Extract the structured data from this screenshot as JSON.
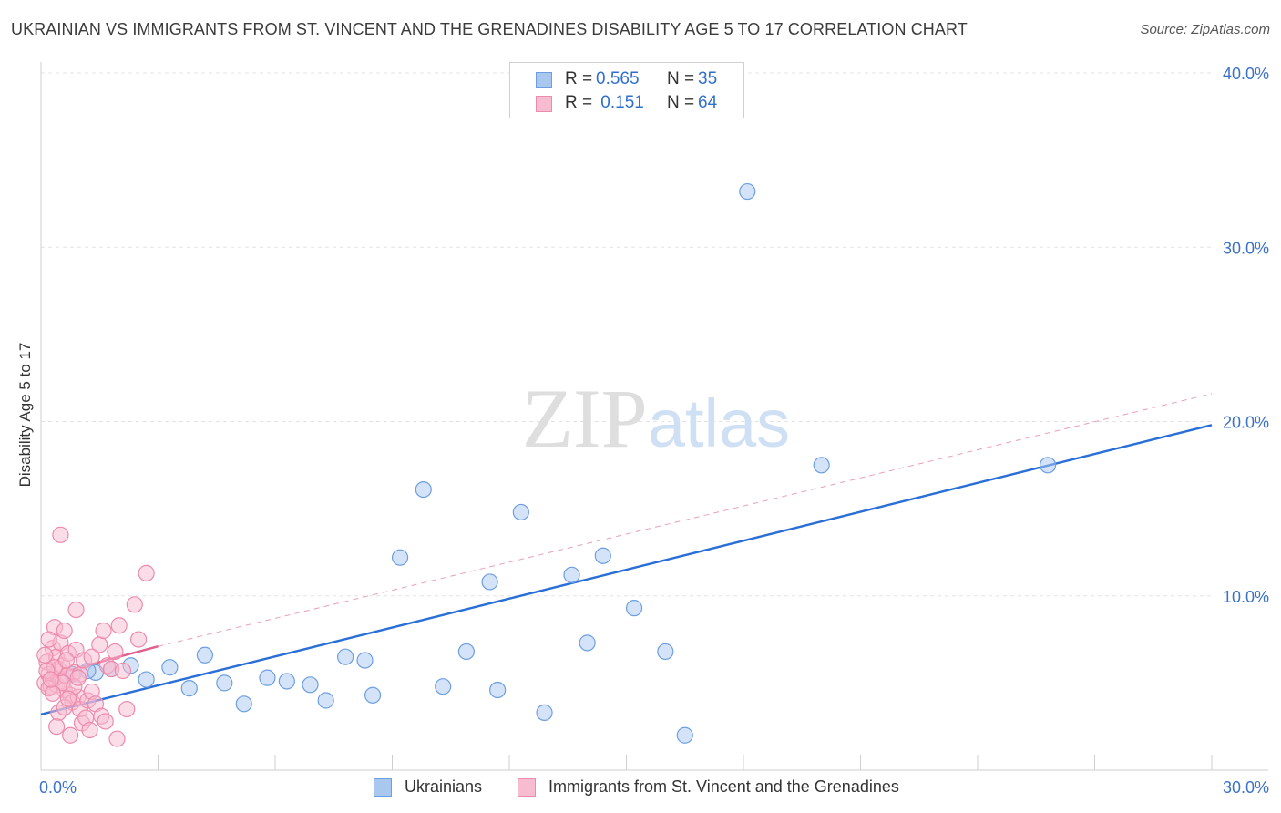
{
  "title": "UKRAINIAN VS IMMIGRANTS FROM ST. VINCENT AND THE GRENADINES DISABILITY AGE 5 TO 17 CORRELATION CHART",
  "source": "Source: ZipAtlas.com",
  "watermark": "ZIPatlas",
  "legend_stats": [
    {
      "r_label": "R =",
      "r_value": "0.565",
      "n_label": "N =",
      "n_value": "35",
      "color": "#a9c8f0",
      "border": "#6d9fe0"
    },
    {
      "r_label": "R =",
      "r_value": " 0.151",
      "n_label": "N =",
      "n_value": "64",
      "color": "#f8bcd0",
      "border": "#ee8aab"
    }
  ],
  "legend_series": [
    {
      "label": "Ukrainians",
      "color": "#a9c8f0",
      "border": "#6d9fe0"
    },
    {
      "label": "Immigrants from St. Vincent and the Grenadines",
      "color": "#f8bcd0",
      "border": "#ee8aab"
    }
  ],
  "chart_data": {
    "type": "scatter",
    "title": "UKRAINIAN VS IMMIGRANTS FROM ST. VINCENT AND THE GRENADINES DISABILITY AGE 5 TO 17 CORRELATION CHART",
    "xlabel": "",
    "ylabel": "Disability Age 5 to 17",
    "xlim": [
      0,
      30
    ],
    "ylim": [
      0,
      40
    ],
    "x_tick_labels": [
      "0.0%",
      "30.0%"
    ],
    "y_ticks": [
      10,
      20,
      30,
      40
    ],
    "y_tick_labels": [
      "10.0%",
      "20.0%",
      "30.0%",
      "40.0%"
    ],
    "grid": true,
    "series": [
      {
        "name": "Ukrainians",
        "color": "#6d9fe0",
        "fill": "#a9c8f0",
        "r": 0.565,
        "n": 35,
        "trend": {
          "x0": 0,
          "y0": 3.2,
          "x1": 30,
          "y1": 19.8,
          "style": "solid",
          "color": "#2a6fd6"
        },
        "points": [
          [
            1.4,
            5.6
          ],
          [
            1.8,
            5.8
          ],
          [
            2.3,
            6.0
          ],
          [
            2.7,
            5.2
          ],
          [
            3.3,
            5.9
          ],
          [
            3.8,
            4.7
          ],
          [
            4.2,
            6.6
          ],
          [
            4.7,
            5.0
          ],
          [
            5.2,
            3.8
          ],
          [
            5.8,
            5.3
          ],
          [
            6.3,
            5.1
          ],
          [
            6.9,
            4.9
          ],
          [
            7.3,
            4.0
          ],
          [
            7.8,
            6.5
          ],
          [
            8.3,
            6.3
          ],
          [
            8.5,
            4.3
          ],
          [
            9.2,
            12.2
          ],
          [
            9.8,
            16.1
          ],
          [
            10.3,
            4.8
          ],
          [
            10.9,
            6.8
          ],
          [
            11.5,
            10.8
          ],
          [
            11.7,
            4.6
          ],
          [
            12.3,
            14.8
          ],
          [
            12.9,
            3.3
          ],
          [
            13.6,
            11.2
          ],
          [
            14.0,
            7.3
          ],
          [
            14.4,
            12.3
          ],
          [
            15.2,
            9.3
          ],
          [
            16.0,
            6.8
          ],
          [
            16.5,
            2.0
          ],
          [
            18.1,
            33.2
          ],
          [
            20.0,
            17.5
          ],
          [
            25.8,
            17.5
          ],
          [
            0.8,
            5.5
          ],
          [
            1.2,
            5.7
          ]
        ]
      },
      {
        "name": "Immigrants from St. Vincent and the Grenadines",
        "color": "#ee8aab",
        "fill": "#f8bcd0",
        "r": 0.151,
        "n": 64,
        "trend": {
          "x0": 0,
          "y0": 5.3,
          "x1": 3.0,
          "y1": 7.1,
          "style": "solid",
          "color": "#e0608c"
        },
        "trend_extended": {
          "x0": 3.0,
          "y0": 7.1,
          "x1": 30,
          "y1": 21.6,
          "style": "dashed",
          "color": "#e8a0b8"
        },
        "points": [
          [
            0.1,
            5.0
          ],
          [
            0.15,
            6.2
          ],
          [
            0.2,
            5.5
          ],
          [
            0.25,
            4.8
          ],
          [
            0.3,
            7.0
          ],
          [
            0.3,
            5.3
          ],
          [
            0.35,
            8.2
          ],
          [
            0.4,
            6.5
          ],
          [
            0.4,
            4.9
          ],
          [
            0.45,
            5.8
          ],
          [
            0.5,
            5.1
          ],
          [
            0.5,
            7.3
          ],
          [
            0.55,
            6.0
          ],
          [
            0.6,
            4.6
          ],
          [
            0.6,
            8.0
          ],
          [
            0.65,
            5.4
          ],
          [
            0.7,
            6.7
          ],
          [
            0.75,
            4.3
          ],
          [
            0.8,
            3.9
          ],
          [
            0.85,
            5.6
          ],
          [
            0.9,
            6.9
          ],
          [
            0.95,
            4.2
          ],
          [
            1.0,
            3.5
          ],
          [
            1.0,
            5.5
          ],
          [
            1.05,
            2.7
          ],
          [
            1.1,
            6.3
          ],
          [
            1.15,
            3.0
          ],
          [
            1.2,
            4.0
          ],
          [
            1.25,
            2.3
          ],
          [
            1.3,
            4.5
          ],
          [
            1.4,
            3.8
          ],
          [
            1.5,
            7.2
          ],
          [
            1.55,
            3.1
          ],
          [
            1.6,
            8.0
          ],
          [
            1.65,
            2.8
          ],
          [
            1.7,
            6.0
          ],
          [
            1.8,
            5.8
          ],
          [
            1.9,
            6.8
          ],
          [
            1.95,
            1.8
          ],
          [
            2.0,
            8.3
          ],
          [
            2.1,
            5.7
          ],
          [
            2.2,
            3.5
          ],
          [
            2.4,
            9.5
          ],
          [
            2.5,
            7.5
          ],
          [
            2.7,
            11.3
          ],
          [
            0.5,
            13.5
          ],
          [
            0.9,
            9.2
          ],
          [
            0.2,
            4.7
          ],
          [
            0.35,
            5.9
          ],
          [
            0.45,
            3.3
          ],
          [
            0.55,
            5.0
          ],
          [
            0.65,
            6.3
          ],
          [
            0.75,
            2.0
          ],
          [
            0.85,
            4.8
          ],
          [
            0.3,
            4.4
          ],
          [
            0.2,
            7.5
          ],
          [
            0.4,
            2.5
          ],
          [
            0.6,
            3.6
          ],
          [
            0.1,
            6.6
          ],
          [
            0.15,
            5.7
          ],
          [
            0.25,
            5.2
          ],
          [
            0.7,
            4.1
          ],
          [
            1.3,
            6.5
          ],
          [
            0.95,
            5.3
          ]
        ]
      }
    ]
  }
}
